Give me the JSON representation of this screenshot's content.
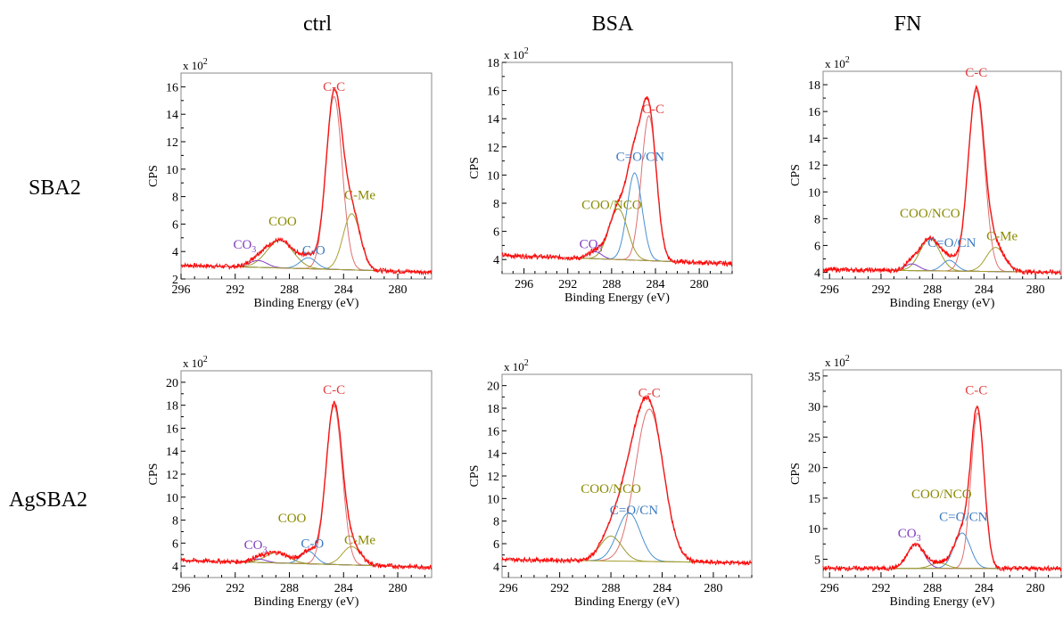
{
  "columns": [
    "ctrl",
    "BSA",
    "FN"
  ],
  "rows": [
    "SBA2",
    "AgSBA2"
  ],
  "colors": {
    "envelope": "#ff0000",
    "C-C": "#e07070",
    "C-Me": "#a8a030",
    "COO": "#9a9a30",
    "C-O": "#4a90d0",
    "C=O/CN": "#4a90d0",
    "CO3": "#8040c0",
    "baseline": "#a8a030",
    "label_CC": "#e04040",
    "label_olive": "#8a8a00",
    "label_blue": "#3a7ac0",
    "label_purple": "#8040c0"
  },
  "chart_data": [
    {
      "type": "line",
      "title": "",
      "column": "ctrl",
      "row": "SBA2",
      "xlabel": "Binding Energy (eV)",
      "ylabel": "CPS",
      "scale_label": "x 10",
      "scale_exp": "2",
      "xlim": [
        296,
        277.5
      ],
      "xticks": [
        296,
        292,
        288,
        284,
        280
      ],
      "ylim": [
        2,
        17
      ],
      "yticks": [
        2,
        4,
        6,
        8,
        10,
        12,
        14,
        16
      ],
      "baseline": [
        3.0,
        2.5
      ],
      "components": [
        {
          "name": "C-C",
          "center": 284.7,
          "height": 12.6,
          "fwhm": 1.4,
          "color": "C-C"
        },
        {
          "name": "C-Me",
          "center": 283.4,
          "height": 4.1,
          "fwhm": 1.5,
          "color": "C-Me"
        },
        {
          "name": "COO",
          "center": 288.7,
          "height": 2.0,
          "fwhm": 2.3,
          "color": "COO"
        },
        {
          "name": "C-O",
          "center": 286.6,
          "height": 0.8,
          "fwhm": 1.4,
          "color": "C-O"
        },
        {
          "name": "CO3",
          "center": 290.3,
          "height": 0.5,
          "fwhm": 1.5,
          "color": "CO3"
        }
      ],
      "annotations": [
        {
          "text": "C-C",
          "x": 284.7,
          "y": 15.7,
          "color": "label_CC"
        },
        {
          "text": "COO",
          "x": 288.5,
          "y": 5.9,
          "color": "label_olive"
        },
        {
          "text": "CO",
          "sub": "3",
          "x": 291.3,
          "y": 4.2,
          "color": "label_purple"
        },
        {
          "text": "C-O",
          "x": 286.2,
          "y": 3.8,
          "color": "label_blue"
        },
        {
          "text": "C-Me",
          "x": 282.8,
          "y": 7.8,
          "color": "label_olive"
        }
      ]
    },
    {
      "type": "line",
      "title": "",
      "column": "BSA",
      "row": "SBA2",
      "xlabel": "Binding Energy (eV)",
      "ylabel": "CPS",
      "scale_label": "x 10",
      "scale_exp": "2",
      "xlim": [
        298,
        277
      ],
      "xticks": [
        296,
        292,
        288,
        284,
        280
      ],
      "ylim": [
        3,
        18
      ],
      "yticks": [
        4,
        6,
        8,
        10,
        12,
        14,
        16,
        18
      ],
      "baseline": [
        4.3,
        3.7
      ],
      "components": [
        {
          "name": "C-C",
          "center": 284.6,
          "height": 10.3,
          "fwhm": 1.6,
          "color": "C-C"
        },
        {
          "name": "C=O/CN",
          "center": 285.9,
          "height": 6.2,
          "fwhm": 1.6,
          "color": "C=O/CN"
        },
        {
          "name": "COO/NCO",
          "center": 287.4,
          "height": 3.6,
          "fwhm": 2.0,
          "color": "COO"
        },
        {
          "name": "CO3",
          "center": 289.5,
          "height": 0.5,
          "fwhm": 1.4,
          "color": "CO3"
        }
      ],
      "annotations": [
        {
          "text": "C-C",
          "x": 284.2,
          "y": 14.4,
          "color": "label_CC"
        },
        {
          "text": "C=O/CN",
          "x": 285.4,
          "y": 11.0,
          "color": "label_blue"
        },
        {
          "text": "COO/NCO",
          "x": 288.0,
          "y": 7.6,
          "color": "label_olive"
        },
        {
          "text": "CO",
          "sub": "3",
          "x": 289.9,
          "y": 4.8,
          "color": "label_purple"
        }
      ]
    },
    {
      "type": "line",
      "title": "",
      "column": "FN",
      "row": "SBA2",
      "xlabel": "Binding Energy (eV)",
      "ylabel": "CPS",
      "scale_label": "x 10",
      "scale_exp": "2",
      "xlim": [
        296.5,
        278
      ],
      "xticks": [
        296,
        292,
        288,
        284,
        280
      ],
      "ylim": [
        3.5,
        19
      ],
      "yticks": [
        4,
        6,
        8,
        10,
        12,
        14,
        16,
        18
      ],
      "baseline": [
        4.2,
        4.0
      ],
      "components": [
        {
          "name": "C-C",
          "center": 284.6,
          "height": 13.5,
          "fwhm": 1.5,
          "color": "C-C"
        },
        {
          "name": "COO/NCO",
          "center": 288.2,
          "height": 2.4,
          "fwhm": 1.8,
          "color": "COO"
        },
        {
          "name": "C=O/CN",
          "center": 286.7,
          "height": 0.8,
          "fwhm": 1.3,
          "color": "C=O/CN"
        },
        {
          "name": "C-Me",
          "center": 283.1,
          "height": 1.8,
          "fwhm": 1.7,
          "color": "C-Me"
        },
        {
          "name": "CO3",
          "center": 289.6,
          "height": 0.5,
          "fwhm": 1.3,
          "color": "CO3"
        }
      ],
      "annotations": [
        {
          "text": "C-C",
          "x": 284.6,
          "y": 18.6,
          "color": "label_CC"
        },
        {
          "text": "COO/NCO",
          "x": 288.2,
          "y": 8.1,
          "color": "label_olive"
        },
        {
          "text": "C=O/CN",
          "x": 286.5,
          "y": 5.9,
          "color": "label_blue"
        },
        {
          "text": "C-Me",
          "x": 282.6,
          "y": 6.4,
          "color": "label_olive"
        }
      ]
    },
    {
      "type": "line",
      "title": "",
      "column": "ctrl",
      "row": "AgSBA2",
      "xlabel": "Binding Energy (eV)",
      "ylabel": "CPS",
      "scale_label": "x 10",
      "scale_exp": "2",
      "xlim": [
        296,
        277.5
      ],
      "xticks": [
        296,
        292,
        288,
        284,
        280
      ],
      "ylim": [
        3,
        21
      ],
      "yticks": [
        4,
        6,
        8,
        10,
        12,
        14,
        16,
        18,
        20
      ],
      "baseline": [
        4.5,
        3.9
      ],
      "components": [
        {
          "name": "C-C",
          "center": 284.7,
          "height": 13.8,
          "fwhm": 1.4,
          "color": "C-C"
        },
        {
          "name": "C-Me",
          "center": 283.4,
          "height": 1.6,
          "fwhm": 1.6,
          "color": "C-Me"
        },
        {
          "name": "COO",
          "center": 288.9,
          "height": 0.9,
          "fwhm": 2.0,
          "color": "COO"
        },
        {
          "name": "C-O",
          "center": 286.6,
          "height": 1.1,
          "fwhm": 1.3,
          "color": "C-O"
        },
        {
          "name": "CO3",
          "center": 290.3,
          "height": 0.3,
          "fwhm": 1.4,
          "color": "CO3"
        }
      ],
      "annotations": [
        {
          "text": "C-C",
          "x": 284.7,
          "y": 19.0,
          "color": "label_CC"
        },
        {
          "text": "COO",
          "x": 287.8,
          "y": 7.8,
          "color": "label_olive"
        },
        {
          "text": "CO",
          "sub": "3",
          "x": 290.5,
          "y": 5.5,
          "color": "label_purple"
        },
        {
          "text": "C-O",
          "x": 286.3,
          "y": 5.6,
          "color": "label_blue"
        },
        {
          "text": "C-Me",
          "x": 282.8,
          "y": 5.9,
          "color": "label_olive"
        }
      ]
    },
    {
      "type": "line",
      "title": "",
      "column": "BSA",
      "row": "AgSBA2",
      "xlabel": "Binding Energy (eV)",
      "ylabel": "CPS",
      "scale_label": "x 10",
      "scale_exp": "2",
      "xlim": [
        296.5,
        277
      ],
      "xticks": [
        296,
        292,
        288,
        284,
        280
      ],
      "ylim": [
        3,
        21
      ],
      "yticks": [
        4,
        6,
        8,
        10,
        12,
        14,
        16,
        18,
        20
      ],
      "baseline": [
        4.6,
        4.3
      ],
      "components": [
        {
          "name": "C-C",
          "center": 285.0,
          "height": 13.5,
          "fwhm": 2.6,
          "color": "C-C"
        },
        {
          "name": "C=O/CN",
          "center": 286.6,
          "height": 4.3,
          "fwhm": 2.1,
          "color": "C=O/CN"
        },
        {
          "name": "COO/NCO",
          "center": 288.0,
          "height": 2.2,
          "fwhm": 2.0,
          "color": "COO"
        }
      ],
      "annotations": [
        {
          "text": "C-C",
          "x": 285.0,
          "y": 19.0,
          "color": "label_CC"
        },
        {
          "text": "COO/NCO",
          "x": 288.0,
          "y": 10.5,
          "color": "label_olive"
        },
        {
          "text": "C=O/CN",
          "x": 286.2,
          "y": 8.6,
          "color": "label_blue"
        }
      ]
    },
    {
      "type": "line",
      "title": "",
      "column": "FN",
      "row": "AgSBA2",
      "xlabel": "Binding Energy (eV)",
      "ylabel": "CPS",
      "scale_label": "x 10",
      "scale_exp": "2",
      "xlim": [
        296.5,
        278
      ],
      "xticks": [
        296,
        292,
        288,
        284,
        280
      ],
      "ylim": [
        2,
        36
      ],
      "yticks": [
        5,
        10,
        15,
        20,
        25,
        30,
        35
      ],
      "baseline": [
        3.5,
        3.5
      ],
      "components": [
        {
          "name": "C-C",
          "center": 284.5,
          "height": 25.5,
          "fwhm": 1.2,
          "color": "C-C"
        },
        {
          "name": "C=O/CN",
          "center": 285.7,
          "height": 5.8,
          "fwhm": 1.5,
          "color": "C=O/CN"
        },
        {
          "name": "COO/NCO",
          "center": 287.5,
          "height": 0.9,
          "fwhm": 1.5,
          "color": "COO"
        },
        {
          "name": "CO3",
          "center": 289.3,
          "height": 4.0,
          "fwhm": 1.5,
          "color": "CO3"
        }
      ],
      "annotations": [
        {
          "text": "C-C",
          "x": 284.6,
          "y": 32.0,
          "color": "label_CC"
        },
        {
          "text": "COO/NCO",
          "x": 287.3,
          "y": 15.0,
          "color": "label_olive"
        },
        {
          "text": "C=O/CN",
          "x": 285.6,
          "y": 11.3,
          "color": "label_blue"
        },
        {
          "text": "CO",
          "sub": "3",
          "x": 289.8,
          "y": 8.6,
          "color": "label_purple"
        }
      ]
    }
  ]
}
